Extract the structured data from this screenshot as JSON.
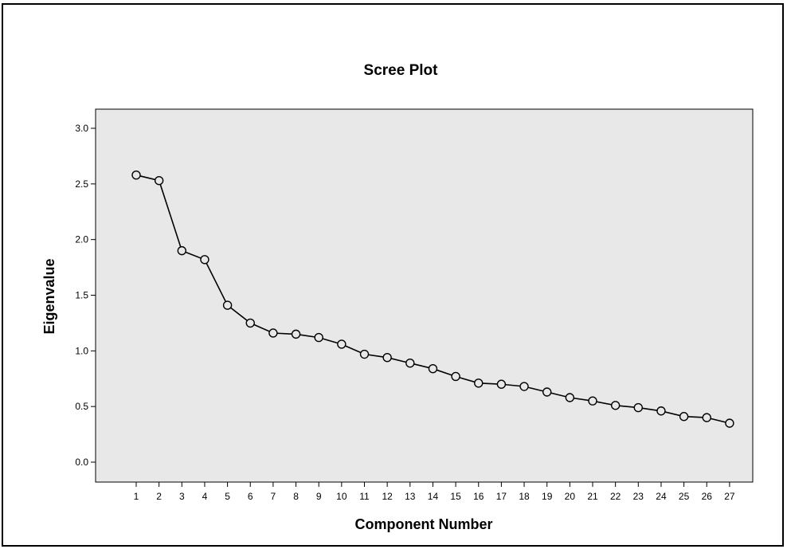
{
  "chart_data": {
    "type": "line",
    "title": "Scree Plot",
    "xlabel": "Component Number",
    "ylabel": "Eigenvalue",
    "x": [
      1,
      2,
      3,
      4,
      5,
      6,
      7,
      8,
      9,
      10,
      11,
      12,
      13,
      14,
      15,
      16,
      17,
      18,
      19,
      20,
      21,
      22,
      23,
      24,
      25,
      26,
      27
    ],
    "series": [
      {
        "values": [
          2.58,
          2.53,
          1.9,
          1.82,
          1.41,
          1.25,
          1.16,
          1.15,
          1.12,
          1.06,
          0.97,
          0.94,
          0.89,
          0.84,
          0.77,
          0.71,
          0.7,
          0.68,
          0.63,
          0.58,
          0.55,
          0.51,
          0.49,
          0.46,
          0.41,
          0.4,
          0.35
        ],
        "color": "#000000",
        "marker": "open-circle"
      }
    ],
    "xticks": [
      "1",
      "2",
      "3",
      "4",
      "5",
      "6",
      "7",
      "8",
      "9",
      "10",
      "11",
      "12",
      "13",
      "14",
      "15",
      "16",
      "17",
      "18",
      "19",
      "20",
      "21",
      "22",
      "23",
      "24",
      "25",
      "26",
      "27"
    ],
    "yticks": [
      "0.0",
      "0.5",
      "1.0",
      "1.5",
      "2.0",
      "2.5",
      "3.0"
    ],
    "ylim": [
      0,
      3.0
    ],
    "plot_background": "#e8e8e8",
    "grid": false,
    "legend": "none"
  }
}
